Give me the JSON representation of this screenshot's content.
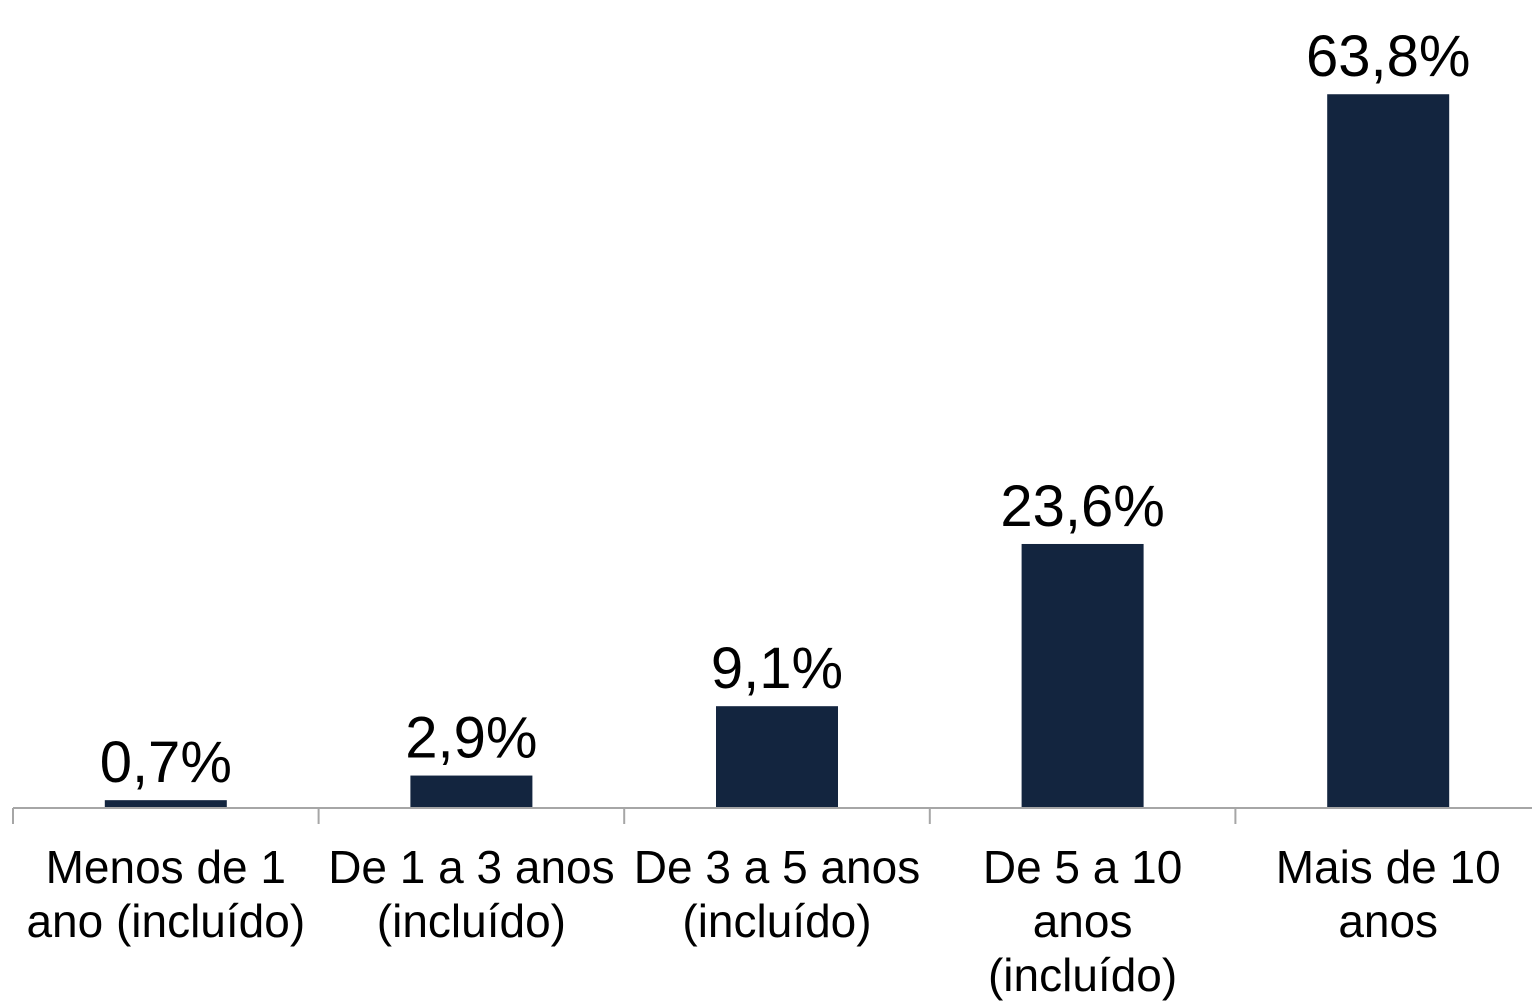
{
  "chart_data": {
    "type": "bar",
    "categories": [
      [
        "Menos de 1",
        "ano (incluído)"
      ],
      [
        "De 1 a 3 anos",
        "(incluído)"
      ],
      [
        "De 3 a 5 anos",
        "(incluído)"
      ],
      [
        "De 5 a 10",
        "anos",
        "(incluído)"
      ],
      [
        "Mais de 10",
        "anos"
      ]
    ],
    "values": [
      0.7,
      2.9,
      9.1,
      23.6,
      63.8
    ],
    "data_labels": [
      "0,7%",
      "2,9%",
      "9,1%",
      "23,6%",
      "63,8%"
    ],
    "title": "",
    "xlabel": "",
    "ylabel": "",
    "ylim": [
      0,
      64
    ],
    "grid": false,
    "legend": "none",
    "colors": {
      "bar": "#13253f",
      "axis": "#a6a6a6",
      "text": "#000000"
    }
  }
}
